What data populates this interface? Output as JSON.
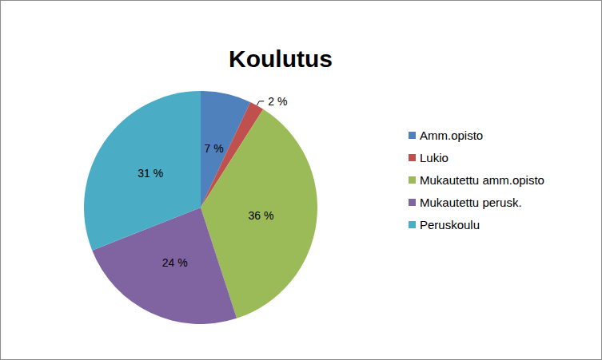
{
  "chart_data": {
    "type": "pie",
    "title": "Koulutus",
    "categories": [
      "Amm.opisto",
      "Lukio",
      "Mukautettu amm.opisto",
      "Mukautettu perusk.",
      "Peruskoulu"
    ],
    "values": [
      7,
      2,
      36,
      24,
      31
    ],
    "value_labels": [
      "7 %",
      "2 %",
      "36 %",
      "24 %",
      "31 %"
    ],
    "colors": [
      "#4f81bd",
      "#c0504d",
      "#9bbb59",
      "#8064a2",
      "#4bacc6"
    ],
    "legend": "right",
    "data_labels": true
  }
}
